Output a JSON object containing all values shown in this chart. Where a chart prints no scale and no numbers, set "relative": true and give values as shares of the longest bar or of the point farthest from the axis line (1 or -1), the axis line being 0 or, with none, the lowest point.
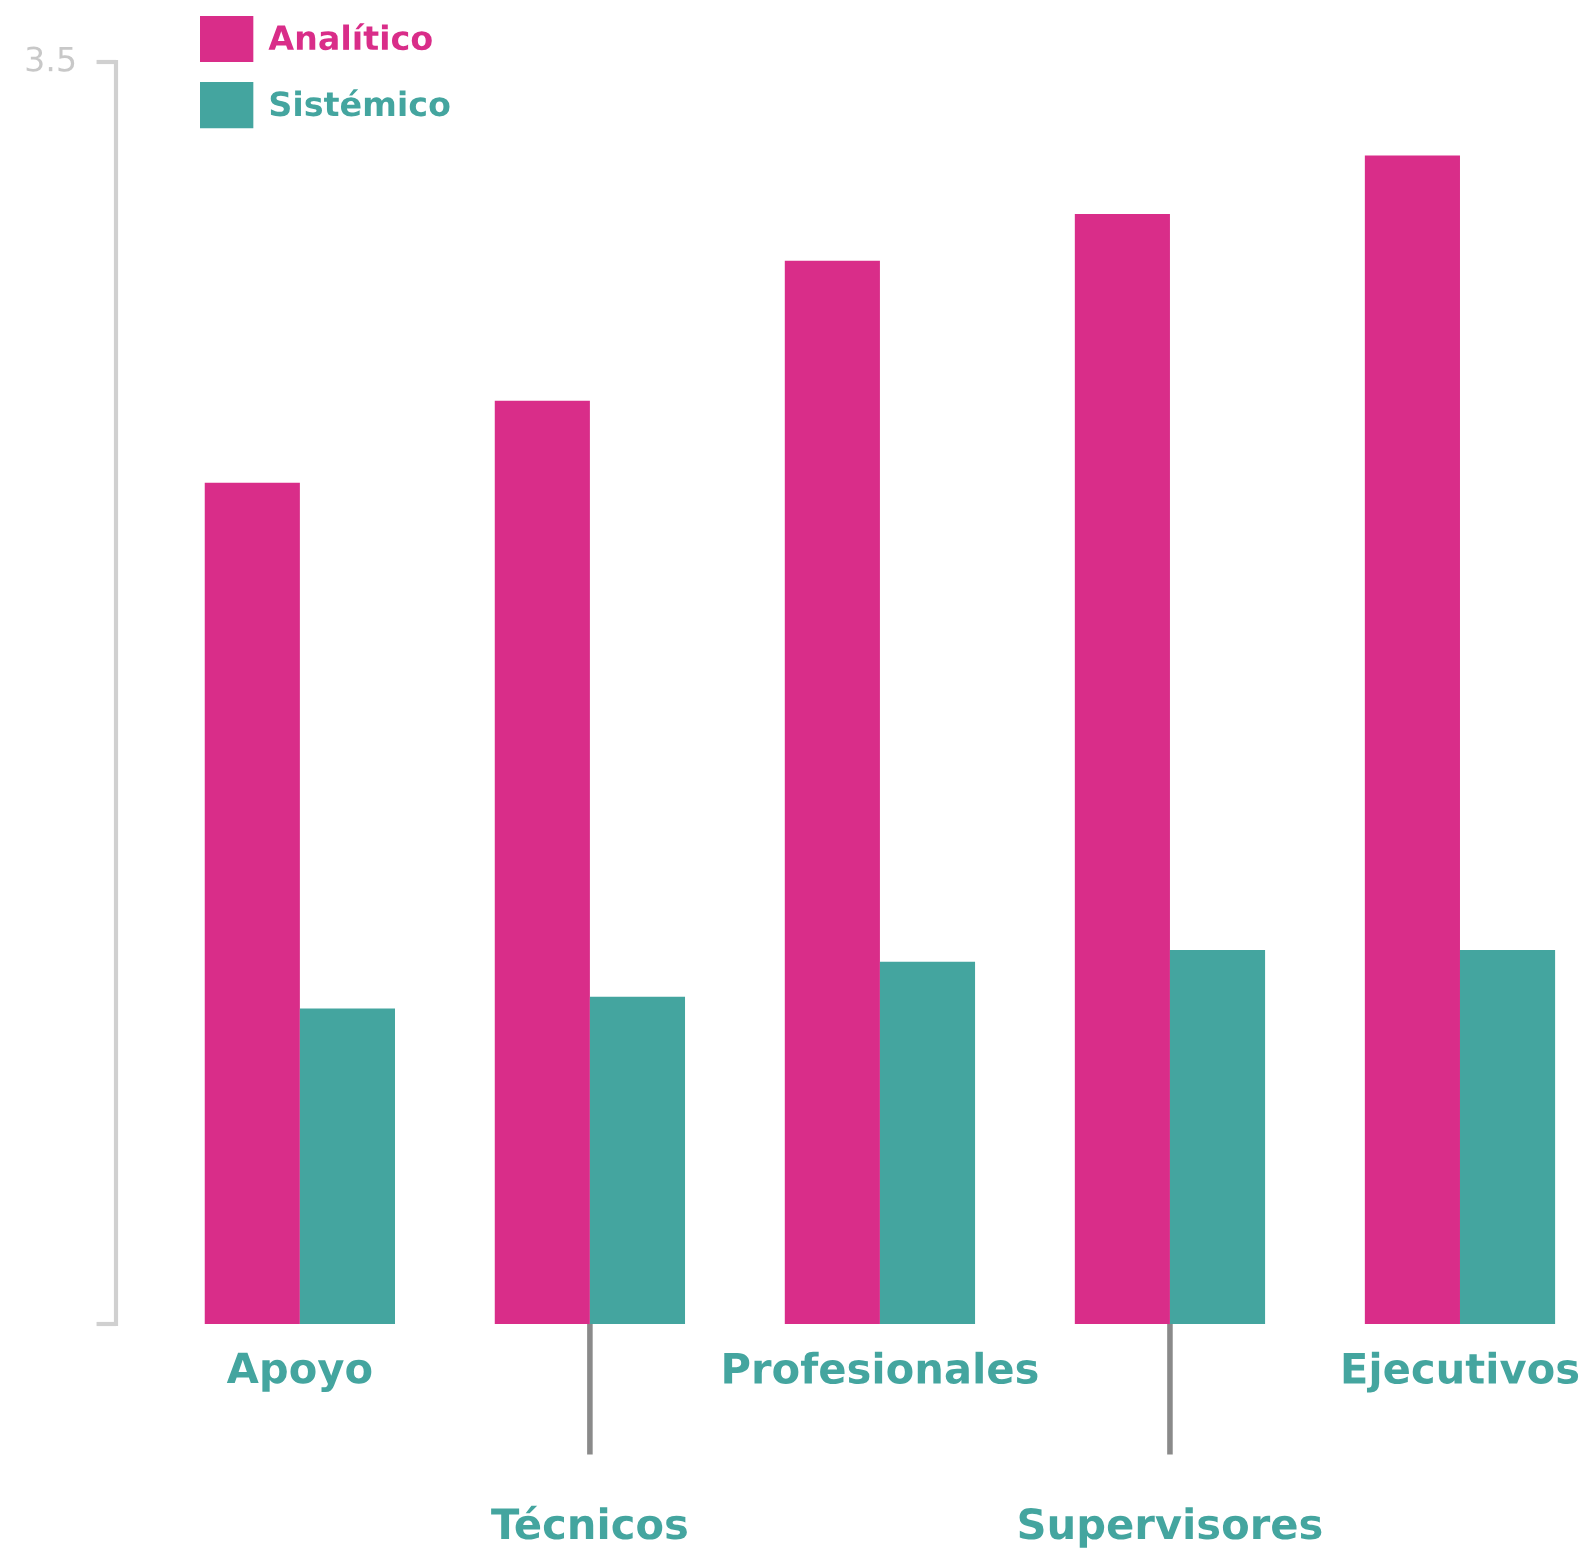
{
  "chart_data": {
    "type": "bar",
    "relative": true,
    "categories": [
      "Apoyo",
      "Técnicos",
      "Profesionales",
      "Supervisores",
      "Ejecutivos"
    ],
    "series": [
      {
        "name": "Analítico",
        "color": "#d92d89",
        "values": [
          0.72,
          0.79,
          0.91,
          0.95,
          1
        ]
      },
      {
        "name": "Sistémico",
        "color": "#44a59f",
        "values": [
          0.27,
          0.28,
          0.31,
          0.32,
          0.32
        ]
      }
    ],
    "legend": "top left",
    "annotations": [
      "3.5"
    ]
  }
}
